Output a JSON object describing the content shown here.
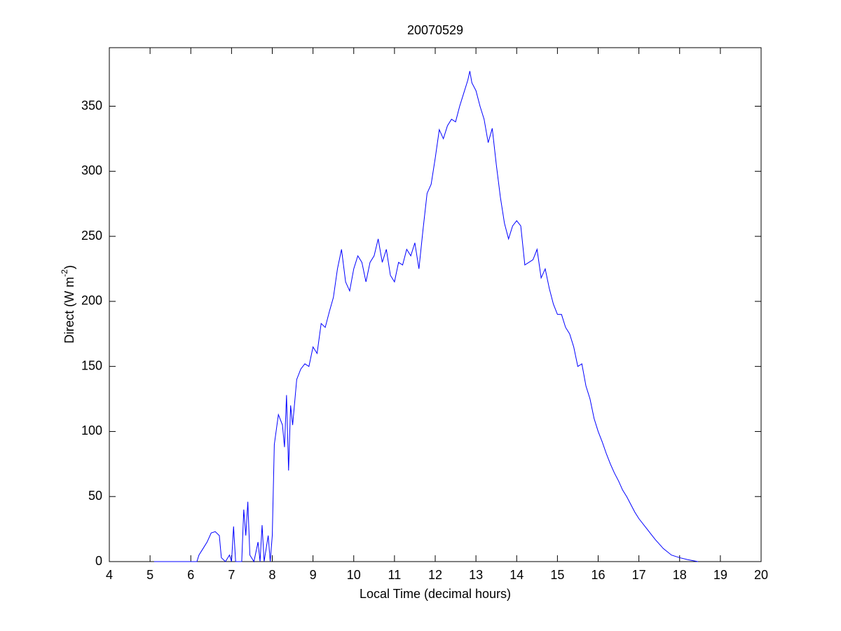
{
  "chart_data": {
    "type": "line",
    "title": "20070529",
    "xlabel": "Local Time (decimal hours)",
    "ylabel": {
      "text": "Direct (W m",
      "sup": "-2",
      "end": ")"
    },
    "xlim": [
      4,
      20
    ],
    "xticks": [
      4,
      5,
      6,
      7,
      8,
      9,
      10,
      11,
      12,
      13,
      14,
      15,
      16,
      17,
      18,
      19,
      20
    ],
    "ylim": [
      0,
      395
    ],
    "yticks": [
      0,
      50,
      100,
      150,
      200,
      250,
      300,
      350
    ],
    "series": [
      {
        "color": "#0000ff",
        "x": [
          5.1,
          6.15,
          6.2,
          6.3,
          6.4,
          6.5,
          6.6,
          6.7,
          6.75,
          6.85,
          6.95,
          7.0,
          7.05,
          7.1,
          7.25,
          7.3,
          7.35,
          7.4,
          7.45,
          7.55,
          7.65,
          7.7,
          7.75,
          7.8,
          7.9,
          7.95,
          8.0,
          8.05,
          8.15,
          8.25,
          8.3,
          8.35,
          8.4,
          8.45,
          8.5,
          8.6,
          8.7,
          8.8,
          8.9,
          9.0,
          9.1,
          9.2,
          9.3,
          9.4,
          9.5,
          9.6,
          9.7,
          9.8,
          9.9,
          10.0,
          10.1,
          10.2,
          10.3,
          10.4,
          10.5,
          10.6,
          10.7,
          10.8,
          10.9,
          11.0,
          11.1,
          11.2,
          11.3,
          11.4,
          11.5,
          11.6,
          11.7,
          11.8,
          11.9,
          12.0,
          12.1,
          12.2,
          12.3,
          12.4,
          12.5,
          12.6,
          12.7,
          12.8,
          12.85,
          12.9,
          13.0,
          13.1,
          13.2,
          13.3,
          13.4,
          13.5,
          13.6,
          13.7,
          13.8,
          13.9,
          14.0,
          14.1,
          14.2,
          14.3,
          14.4,
          14.5,
          14.6,
          14.7,
          14.8,
          14.9,
          15.0,
          15.1,
          15.2,
          15.3,
          15.4,
          15.5,
          15.6,
          15.7,
          15.8,
          15.9,
          16.0,
          16.1,
          16.2,
          16.3,
          16.4,
          16.5,
          16.6,
          16.7,
          16.8,
          16.9,
          17.0,
          17.2,
          17.4,
          17.6,
          17.8,
          18.0,
          18.2,
          18.45
        ],
        "values": [
          0,
          0,
          5,
          10,
          15,
          22,
          23,
          20,
          3,
          0,
          5,
          0,
          27,
          0,
          0,
          40,
          20,
          46,
          5,
          0,
          15,
          0,
          28,
          0,
          20,
          0,
          20,
          90,
          113,
          105,
          88,
          128,
          70,
          120,
          105,
          140,
          148,
          152,
          150,
          165,
          160,
          183,
          180,
          192,
          203,
          225,
          240,
          215,
          208,
          225,
          235,
          230,
          215,
          230,
          235,
          248,
          230,
          240,
          220,
          215,
          230,
          228,
          240,
          235,
          245,
          225,
          255,
          283,
          290,
          310,
          332,
          325,
          335,
          340,
          338,
          350,
          360,
          370,
          377,
          368,
          362,
          350,
          340,
          322,
          333,
          305,
          280,
          260,
          248,
          258,
          262,
          258,
          228,
          230,
          232,
          240,
          218,
          225,
          210,
          198,
          190,
          190,
          180,
          175,
          165,
          150,
          152,
          135,
          125,
          110,
          100,
          92,
          83,
          75,
          68,
          62,
          55,
          50,
          44,
          38,
          33,
          25,
          17,
          10,
          5,
          3,
          1.5,
          0
        ]
      }
    ]
  }
}
